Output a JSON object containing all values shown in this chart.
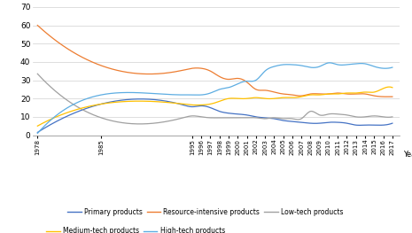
{
  "years": [
    1978,
    1985,
    1994,
    1995,
    1996,
    1997,
    1998,
    1999,
    2000,
    2001,
    2002,
    2003,
    2004,
    2005,
    2006,
    2007,
    2008,
    2009,
    2010,
    2011,
    2012,
    2013,
    2014,
    2015,
    2016,
    2017
  ],
  "primary": [
    1.5,
    17.0,
    16.5,
    15.5,
    16.0,
    15.0,
    13.0,
    12.0,
    11.5,
    11.0,
    10.0,
    9.5,
    9.0,
    8.0,
    7.5,
    7.0,
    6.5,
    6.5,
    7.0,
    7.0,
    6.5,
    5.5,
    5.5,
    5.5,
    5.5,
    6.5
  ],
  "resource_intensive": [
    60.0,
    38.0,
    35.5,
    36.5,
    36.5,
    35.0,
    32.0,
    30.5,
    31.0,
    29.0,
    25.0,
    24.5,
    23.5,
    22.5,
    22.0,
    21.5,
    22.5,
    22.5,
    22.5,
    23.0,
    22.5,
    22.5,
    22.5,
    21.5,
    21.0,
    21.0
  ],
  "low_tech": [
    33.5,
    9.5,
    9.5,
    10.5,
    10.0,
    9.5,
    9.5,
    9.5,
    9.5,
    9.5,
    9.5,
    9.0,
    9.5,
    9.0,
    9.0,
    9.0,
    13.0,
    11.0,
    11.5,
    11.5,
    11.0,
    10.0,
    10.0,
    10.5,
    10.0,
    10.0
  ],
  "medium_tech": [
    5.0,
    17.0,
    17.0,
    16.5,
    16.5,
    17.0,
    18.5,
    20.0,
    20.0,
    20.0,
    20.5,
    20.0,
    20.0,
    20.5,
    20.5,
    21.0,
    22.0,
    22.0,
    22.5,
    22.5,
    23.0,
    23.0,
    23.5,
    23.5,
    25.5,
    26.0
  ],
  "high_tech": [
    1.0,
    22.0,
    22.0,
    22.0,
    22.0,
    23.0,
    25.0,
    26.0,
    28.0,
    29.5,
    30.0,
    35.0,
    37.5,
    38.5,
    38.5,
    38.0,
    37.0,
    37.5,
    39.5,
    38.5,
    38.5,
    39.0,
    39.0,
    37.5,
    36.5,
    37.0
  ],
  "ylim": [
    0,
    70
  ],
  "yticks": [
    0,
    10,
    20,
    30,
    40,
    50,
    60,
    70
  ],
  "xtick_years": [
    1978,
    1985,
    1995,
    1996,
    1997,
    1998,
    1999,
    2000,
    2001,
    2002,
    2003,
    2004,
    2005,
    2006,
    2007,
    2008,
    2009,
    2010,
    2011,
    2012,
    2013,
    2014,
    2015,
    2016,
    2017
  ],
  "xlabel": "Year",
  "colors": {
    "primary": "#4472C4",
    "resource_intensive": "#ED7D31",
    "low_tech": "#A0A0A0",
    "medium_tech": "#FFC000",
    "high_tech": "#5DADE2"
  }
}
